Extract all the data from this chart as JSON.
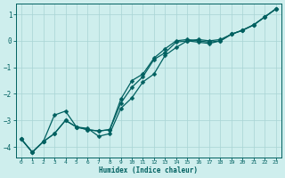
{
  "xlabel": "Humidex (Indice chaleur)",
  "bg_color": "#ceeeed",
  "grid_color": "#a8d4d4",
  "line_color": "#006060",
  "xlim": [
    -0.5,
    23.5
  ],
  "ylim": [
    -4.4,
    1.4
  ],
  "xticks": [
    0,
    1,
    2,
    3,
    4,
    5,
    6,
    7,
    8,
    9,
    10,
    11,
    12,
    13,
    14,
    15,
    16,
    17,
    18,
    19,
    20,
    21,
    22,
    23
  ],
  "yticks": [
    -4,
    -3,
    -2,
    -1,
    0,
    1
  ],
  "line1_x": [
    0,
    1,
    2,
    3,
    4,
    5,
    6,
    7,
    8,
    9,
    10,
    11,
    12,
    13,
    14,
    15,
    16,
    17,
    18,
    19,
    20,
    21,
    22,
    23
  ],
  "line1_y": [
    -3.7,
    -4.2,
    -3.8,
    -3.5,
    -3.0,
    -3.25,
    -3.35,
    -3.4,
    -3.35,
    -2.2,
    -1.5,
    -1.25,
    -0.65,
    -0.3,
    -0.0,
    0.05,
    0.0,
    -0.05,
    0.0,
    0.25,
    0.4,
    0.6,
    0.9,
    1.2
  ],
  "line2_x": [
    0,
    1,
    2,
    3,
    4,
    5,
    6,
    7,
    8,
    9,
    10,
    11,
    12,
    13,
    14,
    15,
    16,
    17,
    18,
    19,
    20,
    21,
    22,
    23
  ],
  "line2_y": [
    -3.7,
    -4.2,
    -3.8,
    -2.8,
    -2.65,
    -3.25,
    -3.3,
    -3.6,
    -3.5,
    -2.55,
    -2.15,
    -1.55,
    -1.25,
    -0.55,
    -0.25,
    -0.0,
    0.05,
    0.0,
    0.05,
    0.25,
    0.4,
    0.6,
    0.9,
    1.2
  ],
  "line3_x": [
    0,
    1,
    2,
    3,
    4,
    5,
    6,
    7,
    8,
    9,
    10,
    11,
    12,
    13,
    14,
    15,
    16,
    17,
    18,
    19,
    20,
    21,
    22,
    23
  ],
  "line3_y": [
    -3.7,
    -4.2,
    -3.8,
    -3.5,
    -3.0,
    -3.25,
    -3.35,
    -3.4,
    -3.35,
    -2.35,
    -1.75,
    -1.35,
    -0.7,
    -0.45,
    -0.05,
    0.0,
    -0.05,
    -0.1,
    0.0,
    0.25,
    0.4,
    0.6,
    0.9,
    1.2
  ]
}
